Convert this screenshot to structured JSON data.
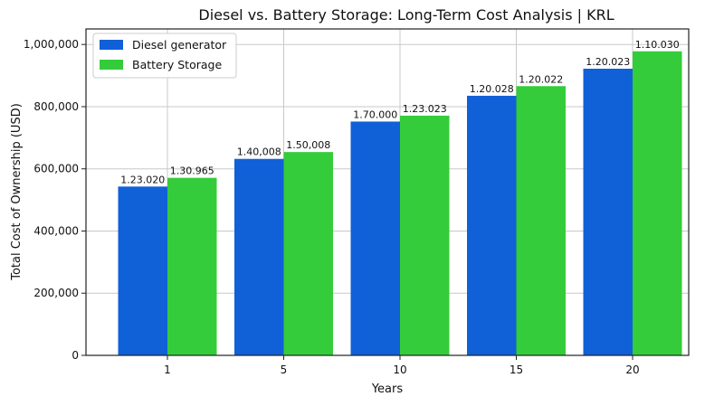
{
  "chart_data": {
    "type": "bar",
    "title": "Diesel vs. Battery Storage: Long-Term Cost Analysis | KRL",
    "xlabel": "Years",
    "ylabel": "Total Cost of Ownership (USD)",
    "categories": [
      "1",
      "5",
      "10",
      "15",
      "20"
    ],
    "ylim": [
      0,
      1050000
    ],
    "yticks": [
      0,
      200000,
      400000,
      600000,
      800000,
      1000000
    ],
    "ytick_labels": [
      "0",
      "200,000",
      "400,000",
      "600,000",
      "800,000",
      "1,000,000"
    ],
    "grid": true,
    "legend_position": "top-left",
    "series": [
      {
        "name": "Diesel generator",
        "color": "#1060d8",
        "values": [
          543000,
          632000,
          752000,
          835000,
          922000
        ],
        "labels": [
          "1.23.020",
          "1.40,008",
          "1.70.000",
          "1.20.028",
          "1.20.023"
        ]
      },
      {
        "name": "Battery Storage",
        "color": "#34cc3a",
        "values": [
          571000,
          654000,
          771000,
          866000,
          978000
        ],
        "labels": [
          "1.30.965",
          "1.50,008",
          "1.23.023",
          "1.20.022",
          "1.10.030"
        ]
      }
    ]
  }
}
